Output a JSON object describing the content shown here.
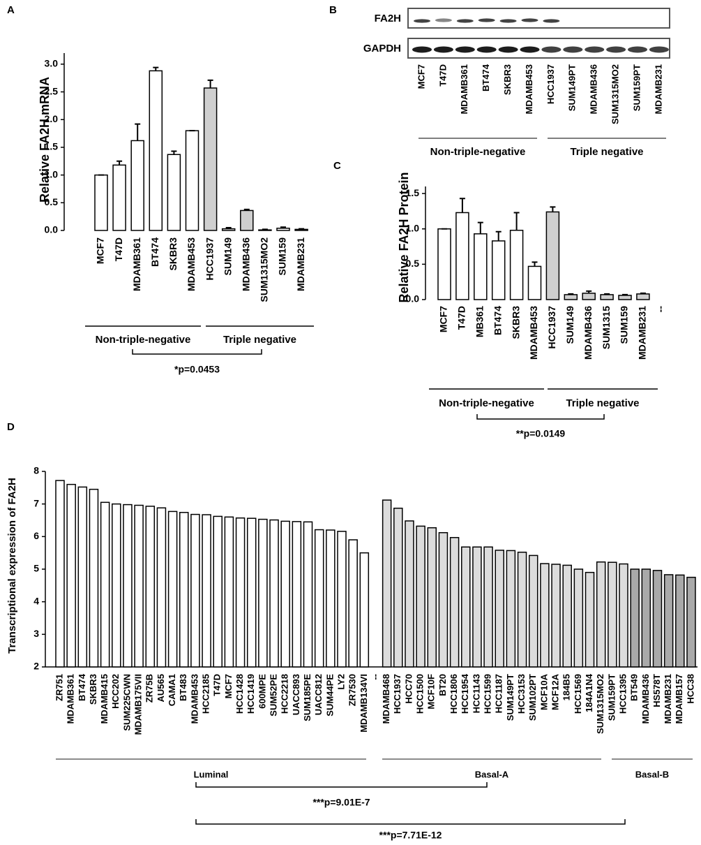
{
  "chart_data": [
    {
      "type": "bar",
      "panel": "A",
      "ylabel": "Relative FA2H mRNA",
      "categories": [
        "MCF7",
        "T47D",
        "MDAMB361",
        "BT474",
        "SKBR3",
        "MDAMB453",
        "HCC1937",
        "SUM149",
        "MDAMB436",
        "SUM1315MO2",
        "SUM159",
        "MDAMB231"
      ],
      "values": [
        1.0,
        1.18,
        1.62,
        2.88,
        1.37,
        1.8,
        2.57,
        0.03,
        0.36,
        0.01,
        0.04,
        0.02
      ],
      "errors": [
        0,
        0.07,
        0.3,
        0.06,
        0.06,
        0,
        0.14,
        0.02,
        0.02,
        0.01,
        0.02,
        0.01
      ],
      "colors": [
        "#ffffff",
        "#ffffff",
        "#ffffff",
        "#ffffff",
        "#ffffff",
        "#ffffff",
        "#cfcfcf",
        "#ffffff",
        "#cfcfcf",
        "#ffffff",
        "#ffffff",
        "#ffffff"
      ],
      "ylim": [
        0,
        3.2
      ],
      "yticks": [
        {
          "value": 0,
          "label": "0.0"
        },
        0.5,
        {
          "value": 1,
          "label": "1.0"
        },
        1.5,
        {
          "value": 2,
          "label": "2.0"
        },
        2.5,
        {
          "value": 3,
          "label": "3.0"
        }
      ],
      "groups": [
        "Non-triple-negative",
        "Triple negative"
      ],
      "annotations": [
        "*p=0.0453"
      ]
    },
    {
      "type": "bar",
      "panel": "C",
      "ylabel": "Relative FA2H Protein",
      "categories": [
        "MCF7",
        "T47D",
        "MB361",
        "BT474",
        "SKBR3",
        "MDAMB453",
        "HCC1937",
        "SUM149",
        "MDAMB436",
        "SUM1315",
        "SUM159",
        "MDAMB231",
        "--"
      ],
      "values": [
        1.0,
        1.23,
        0.93,
        0.83,
        0.98,
        0.47,
        1.24,
        0.07,
        0.09,
        0.07,
        0.06,
        0.08,
        null
      ],
      "errors": [
        0,
        0.2,
        0.16,
        0.13,
        0.25,
        0.06,
        0.07,
        0.01,
        0.03,
        0.01,
        0.01,
        0.01,
        null
      ],
      "colors": [
        "#ffffff",
        "#ffffff",
        "#ffffff",
        "#ffffff",
        "#ffffff",
        "#ffffff",
        "#cfcfcf",
        "#cfcfcf",
        "#cfcfcf",
        "#cfcfcf",
        "#cfcfcf",
        "#cfcfcf",
        null
      ],
      "ylim": [
        0,
        1.6
      ],
      "yticks": [
        {
          "value": 0,
          "label": "0.0"
        },
        0.5,
        {
          "value": 1,
          "label": "1.0"
        },
        1.5
      ],
      "groups": [
        "Non-triple-negative",
        "Triple negative"
      ],
      "annotations": [
        "**p=0.0149"
      ]
    },
    {
      "type": "bar",
      "panel": "D",
      "ylabel": "Transcriptional expression of  FA2H",
      "categories": [
        "ZR751",
        "MDAMB361",
        "BT474",
        "SKBR3",
        "MDAMB415",
        "HCC202",
        "SUM225CWN",
        "MDAMB175VII",
        "ZR75B",
        "AU565",
        "CAMA1",
        "BT483",
        "MDAMB453",
        "HCC2185",
        "T47D",
        "MCF7",
        "HCC1428",
        "HCC1419",
        "600MPE",
        "SUM52PE",
        "HCC2218",
        "UACC893",
        "SUM185PE",
        "UACC812",
        "SUM44PE",
        "LY2",
        "ZR7530",
        "MDAMB134VI",
        "--",
        "MDAMB468",
        "HCC1937",
        "HCC70",
        "HCC1500",
        "MCF10F",
        "BT20",
        "HCC1806",
        "HCC1954",
        "HCC1143",
        "HCC1599",
        "HCC1187",
        "SUM149PT",
        "HCC3153",
        "SUM102PT",
        "MCF10A",
        "MCF12A",
        "184B5",
        "HCC1569",
        "184A1N4",
        "SUM1315MO2",
        "SUM159PT",
        "HCC1395",
        "BT549",
        "MDAMB436",
        "HS578T",
        "MDAMB231",
        "MDAMB157",
        "HCC38"
      ],
      "values": [
        7.72,
        7.6,
        7.52,
        7.45,
        7.05,
        7.0,
        6.98,
        6.96,
        6.93,
        6.88,
        6.77,
        6.74,
        6.68,
        6.67,
        6.62,
        6.6,
        6.57,
        6.56,
        6.53,
        6.51,
        6.47,
        6.46,
        6.45,
        6.21,
        6.2,
        6.16,
        5.9,
        5.5,
        null,
        7.12,
        6.87,
        6.48,
        6.32,
        6.27,
        6.12,
        5.97,
        5.68,
        5.68,
        5.68,
        5.58,
        5.57,
        5.52,
        5.42,
        5.17,
        5.15,
        5.12,
        5.0,
        4.9,
        5.22,
        5.21,
        5.16,
        5.0,
        5.0,
        4.96,
        4.83,
        4.82,
        4.75
      ],
      "colors": [
        "#ffffff",
        "#ffffff",
        "#ffffff",
        "#ffffff",
        "#ffffff",
        "#ffffff",
        "#ffffff",
        "#ffffff",
        "#ffffff",
        "#ffffff",
        "#ffffff",
        "#ffffff",
        "#ffffff",
        "#ffffff",
        "#ffffff",
        "#ffffff",
        "#ffffff",
        "#ffffff",
        "#ffffff",
        "#ffffff",
        "#ffffff",
        "#ffffff",
        "#ffffff",
        "#ffffff",
        "#ffffff",
        "#ffffff",
        "#ffffff",
        "#ffffff",
        null,
        "#dcdcdc",
        "#dcdcdc",
        "#dcdcdc",
        "#dcdcdc",
        "#dcdcdc",
        "#dcdcdc",
        "#dcdcdc",
        "#dcdcdc",
        "#dcdcdc",
        "#dcdcdc",
        "#dcdcdc",
        "#dcdcdc",
        "#dcdcdc",
        "#dcdcdc",
        "#dcdcdc",
        "#dcdcdc",
        "#dcdcdc",
        "#dcdcdc",
        "#dcdcdc",
        "#dcdcdc",
        "#dcdcdc",
        "#dcdcdc",
        "#a9a9a9",
        "#a9a9a9",
        "#a9a9a9",
        "#a9a9a9",
        "#a9a9a9",
        "#a9a9a9"
      ],
      "ylim": [
        2,
        8
      ],
      "yticks": [
        2,
        3,
        4,
        5,
        6,
        7,
        8
      ],
      "groups": [
        "Luminal",
        "Basal-A",
        "Basal-B"
      ],
      "annotations": [
        "***p=9.01E-7",
        "***p=7.71E-12"
      ]
    }
  ],
  "blot": {
    "panel": "B",
    "rows": [
      "FA2H",
      "GAPDH"
    ],
    "lanes": [
      "MCF7",
      "T47D",
      "MDAMB361",
      "BT474",
      "SKBR3",
      "MDAMB453",
      "HCC1937",
      "SUM149PT",
      "MDAMB436",
      "SUM1315MO2",
      "SUM159PT",
      "MDAMB231"
    ],
    "groups": [
      "Non-triple-negative",
      "Triple negative"
    ]
  }
}
